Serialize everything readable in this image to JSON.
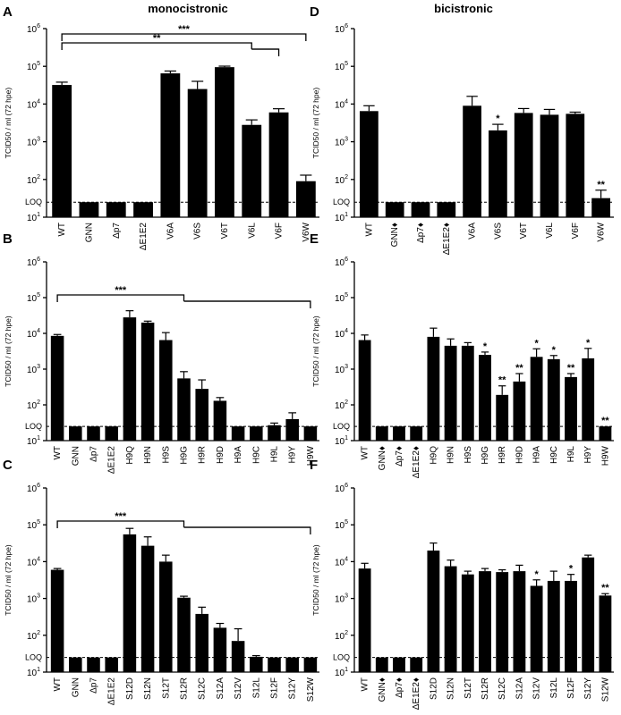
{
  "column_titles": [
    "monocistronic",
    "bicistronic"
  ],
  "loq_label": "LOQ",
  "chart_data": [
    {
      "panel": "A",
      "type": "bar",
      "ylabel": "TCID50 / ml (72 hpe)",
      "yscale": "log",
      "ylim": [
        10,
        1000000
      ],
      "loq": 25,
      "categories": [
        "WT",
        "GNN",
        "Δp7",
        "ΔE1E2",
        "V6A",
        "V6S",
        "V6T",
        "V6L",
        "V6F",
        "V6W"
      ],
      "values": [
        32000,
        25,
        25,
        25,
        65000,
        25000,
        95000,
        2800,
        6000,
        90
      ],
      "errors": [
        6000,
        0,
        0,
        0,
        10000,
        15000,
        6000,
        1000,
        1500,
        40
      ],
      "significance": [
        null,
        null,
        null,
        null,
        null,
        null,
        null,
        null,
        null,
        null
      ],
      "brackets": [
        {
          "label": "***",
          "from": 0,
          "to": 9
        },
        {
          "label": "**",
          "from": 0,
          "to": 7,
          "to_end": 8
        }
      ]
    },
    {
      "panel": "B",
      "type": "bar",
      "ylabel": "TCID50 / ml (72 hpe)",
      "yscale": "log",
      "ylim": [
        10,
        1000000
      ],
      "loq": 25,
      "categories": [
        "WT",
        "GNN",
        "Δp7",
        "ΔE1E2",
        "H9Q",
        "H9N",
        "H9S",
        "H9G",
        "H9R",
        "H9D",
        "H9A",
        "H9C",
        "H9L",
        "H9Y",
        "H9W"
      ],
      "values": [
        8500,
        25,
        25,
        25,
        28000,
        20000,
        6500,
        550,
        280,
        130,
        25,
        25,
        27,
        40,
        25
      ],
      "errors": [
        800,
        0,
        0,
        0,
        15000,
        2000,
        4000,
        300,
        220,
        30,
        0,
        0,
        4,
        20,
        0
      ],
      "significance": [
        null,
        null,
        null,
        null,
        null,
        null,
        null,
        null,
        null,
        null,
        null,
        null,
        null,
        null,
        null
      ],
      "brackets": [
        {
          "label": "***",
          "from": 0,
          "to": 7,
          "to_end": 14
        }
      ]
    },
    {
      "panel": "C",
      "type": "bar",
      "ylabel": "TCID50 / ml (72 hpe)",
      "yscale": "log",
      "ylim": [
        10,
        1000000
      ],
      "loq": 25,
      "categories": [
        "WT",
        "GNN",
        "Δp7",
        "ΔE1E2",
        "S12D",
        "S12N",
        "S12T",
        "S12R",
        "S12C",
        "S12A",
        "S12V",
        "S12L",
        "S12F",
        "S12Y",
        "S12W"
      ],
      "values": [
        6000,
        25,
        25,
        25,
        55000,
        27000,
        10000,
        1050,
        380,
        160,
        70,
        26,
        25,
        25,
        25
      ],
      "errors": [
        500,
        0,
        0,
        0,
        25000,
        20000,
        5000,
        100,
        200,
        50,
        80,
        2,
        0,
        0,
        0
      ],
      "significance": [
        null,
        null,
        null,
        null,
        null,
        null,
        null,
        null,
        null,
        null,
        null,
        null,
        null,
        null,
        null
      ],
      "brackets": [
        {
          "label": "***",
          "from": 0,
          "to": 7,
          "to_end": 14
        }
      ]
    },
    {
      "panel": "D",
      "type": "bar",
      "ylabel": "TCID50 / ml (72 hpe)",
      "yscale": "log",
      "ylim": [
        10,
        1000000
      ],
      "loq": 25,
      "categories": [
        "WT",
        "GNN♦",
        "Δp7♦",
        "ΔE1E2♦",
        "V6A",
        "V6S",
        "V6T",
        "V6L",
        "V6F",
        "V6W"
      ],
      "values": [
        6500,
        25,
        25,
        25,
        9000,
        2000,
        5800,
        5200,
        5500,
        32
      ],
      "errors": [
        2500,
        0,
        0,
        0,
        7000,
        900,
        1800,
        2000,
        600,
        20
      ],
      "significance": [
        null,
        null,
        null,
        null,
        null,
        "*",
        null,
        null,
        null,
        "**"
      ],
      "brackets": []
    },
    {
      "panel": "E",
      "type": "bar",
      "ylabel": "TCID50 / ml (72 hpe)",
      "yscale": "log",
      "ylim": [
        10,
        1000000
      ],
      "loq": 25,
      "categories": [
        "WT",
        "GNN♦",
        "Δp7♦",
        "ΔE1E2♦",
        "H9Q",
        "H9N",
        "H9S",
        "H9G",
        "H9R",
        "H9D",
        "H9A",
        "H9C",
        "H9L",
        "H9Y",
        "H9W"
      ],
      "values": [
        6500,
        25,
        25,
        25,
        8000,
        4500,
        4500,
        2500,
        190,
        450,
        2200,
        1900,
        600,
        2000,
        25
      ],
      "errors": [
        2500,
        0,
        0,
        0,
        6000,
        2500,
        1000,
        500,
        150,
        300,
        1500,
        500,
        150,
        1800,
        0
      ],
      "significance": [
        null,
        null,
        null,
        null,
        null,
        null,
        null,
        "*",
        "**",
        "**",
        "*",
        "*",
        "**",
        "*",
        "**"
      ],
      "brackets": []
    },
    {
      "panel": "F",
      "type": "bar",
      "ylabel": "TCID50 / ml (72 hpe)",
      "yscale": "log",
      "ylim": [
        10,
        1000000
      ],
      "loq": 25,
      "categories": [
        "WT",
        "GNN♦",
        "Δp7♦",
        "ΔE1E2♦",
        "S12D",
        "S12N",
        "S12T",
        "S12R",
        "S12C",
        "S12A",
        "S12V",
        "S12L",
        "S12F",
        "S12Y",
        "S12W"
      ],
      "values": [
        6500,
        25,
        25,
        25,
        20000,
        7500,
        4500,
        5500,
        5200,
        5500,
        2200,
        3000,
        3000,
        13000,
        1200
      ],
      "errors": [
        2500,
        0,
        0,
        0,
        12000,
        3500,
        1000,
        1000,
        800,
        2500,
        1000,
        2500,
        1500,
        2000,
        150
      ],
      "significance": [
        null,
        null,
        null,
        null,
        null,
        null,
        null,
        null,
        null,
        null,
        "*",
        null,
        "*",
        null,
        "**"
      ],
      "brackets": []
    }
  ]
}
